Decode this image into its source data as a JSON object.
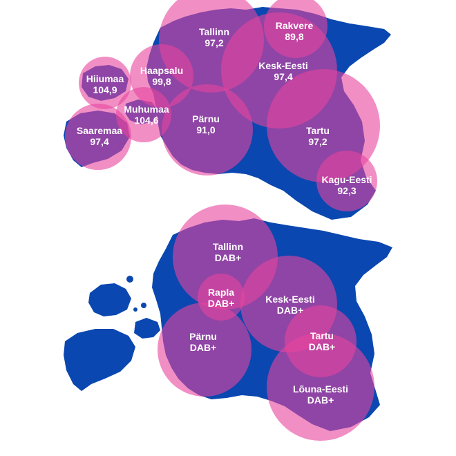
{
  "colors": {
    "land": "#0a47b0",
    "circle_fill": "#e8459e",
    "background": "#ffffff"
  },
  "maps": [
    {
      "name": "fm-coverage-map",
      "stations": [
        {
          "id": "tallinn",
          "name": "Tallinn",
          "value": "97,2"
        },
        {
          "id": "rakvere",
          "name": "Rakvere",
          "value": "89,8"
        },
        {
          "id": "haapsalu",
          "name": "Haapsalu",
          "value": "99,8"
        },
        {
          "id": "kesk-eesti",
          "name": "Kesk-Eesti",
          "value": "97,4"
        },
        {
          "id": "hiiumaa",
          "name": "Hiiumaa",
          "value": "104,9"
        },
        {
          "id": "muhumaa",
          "name": "Muhumaa",
          "value": "104,6"
        },
        {
          "id": "parnu",
          "name": "Pärnu",
          "value": "91,0"
        },
        {
          "id": "saaremaa",
          "name": "Saaremaa",
          "value": "97,4"
        },
        {
          "id": "tartu",
          "name": "Tartu",
          "value": "97,2"
        },
        {
          "id": "kagu-eesti",
          "name": "Kagu-Eesti",
          "value": "92,3"
        }
      ]
    },
    {
      "name": "dab-coverage-map",
      "stations": [
        {
          "id": "tallinn",
          "name": "Tallinn",
          "value": "DAB+"
        },
        {
          "id": "rapla",
          "name": "Rapla",
          "value": "DAB+"
        },
        {
          "id": "kesk-eesti",
          "name": "Kesk-Eesti",
          "value": "DAB+"
        },
        {
          "id": "parnu",
          "name": "Pärnu",
          "value": "DAB+"
        },
        {
          "id": "tartu",
          "name": "Tartu",
          "value": "DAB+"
        },
        {
          "id": "louna-eesti",
          "name": "Lõuna-Eesti",
          "value": "DAB+"
        }
      ]
    }
  ]
}
